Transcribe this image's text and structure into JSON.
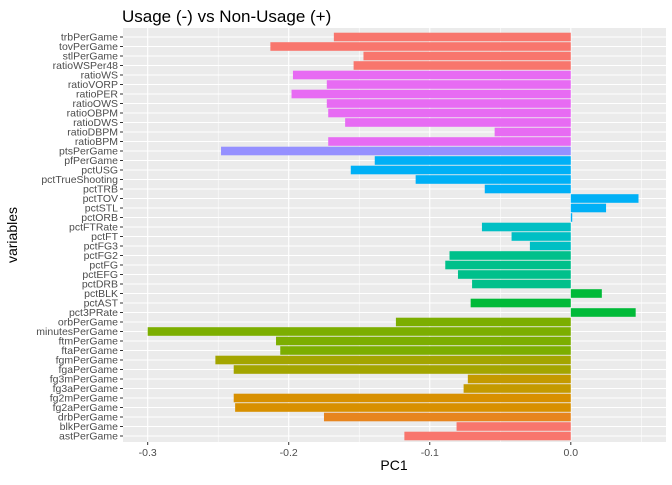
{
  "chart_data": {
    "type": "bar",
    "orientation": "horizontal",
    "title": "Usage (-) vs Non-Usage (+)",
    "xlabel": "PC1",
    "ylabel": "variables",
    "xlim": [
      -0.3175,
      0.0675
    ],
    "xticks": [
      -0.3,
      -0.2,
      -0.1,
      0.0
    ],
    "xtick_labels": [
      "-0.3",
      "-0.2",
      "-0.1",
      "0.0"
    ],
    "grid": true,
    "legend": "none",
    "bars": [
      {
        "name": "trbPerGame",
        "value": -0.168,
        "color": "#F8766D"
      },
      {
        "name": "tovPerGame",
        "value": -0.213,
        "color": "#F8766D"
      },
      {
        "name": "stlPerGame",
        "value": -0.147,
        "color": "#F8766D"
      },
      {
        "name": "ratioWSPer48",
        "value": -0.154,
        "color": "#F8766D"
      },
      {
        "name": "ratioWS",
        "value": -0.197,
        "color": "#E76BF3"
      },
      {
        "name": "ratioVORP",
        "value": -0.173,
        "color": "#E76BF3"
      },
      {
        "name": "ratioPER",
        "value": -0.198,
        "color": "#E76BF3"
      },
      {
        "name": "ratioOWS",
        "value": -0.173,
        "color": "#E76BF3"
      },
      {
        "name": "ratioOBPM",
        "value": -0.172,
        "color": "#E76BF3"
      },
      {
        "name": "ratioDWS",
        "value": -0.16,
        "color": "#E76BF3"
      },
      {
        "name": "ratioDBPM",
        "value": -0.054,
        "color": "#E76BF3"
      },
      {
        "name": "ratioBPM",
        "value": -0.172,
        "color": "#E76BF3"
      },
      {
        "name": "ptsPerGame",
        "value": -0.248,
        "color": "#9590FF"
      },
      {
        "name": "pfPerGame",
        "value": -0.139,
        "color": "#00B0F6"
      },
      {
        "name": "pctUSG",
        "value": -0.156,
        "color": "#00B0F6"
      },
      {
        "name": "pctTrueShooting",
        "value": -0.11,
        "color": "#00B0F6"
      },
      {
        "name": "pctTRB",
        "value": -0.061,
        "color": "#00B0F6"
      },
      {
        "name": "pctTOV",
        "value": 0.048,
        "color": "#00B0F6"
      },
      {
        "name": "pctSTL",
        "value": 0.025,
        "color": "#00B0F6"
      },
      {
        "name": "pctORB",
        "value": 0.001,
        "color": "#00B0F6"
      },
      {
        "name": "pctFTRate",
        "value": -0.063,
        "color": "#00BFC4"
      },
      {
        "name": "pctFT",
        "value": -0.042,
        "color": "#00BFC4"
      },
      {
        "name": "pctFG3",
        "value": -0.029,
        "color": "#00BFC4"
      },
      {
        "name": "pctFG2",
        "value": -0.086,
        "color": "#00C08B"
      },
      {
        "name": "pctFG",
        "value": -0.089,
        "color": "#00C08B"
      },
      {
        "name": "pctEFG",
        "value": -0.08,
        "color": "#00C08B"
      },
      {
        "name": "pctDRB",
        "value": -0.07,
        "color": "#00C08B"
      },
      {
        "name": "pctBLK",
        "value": 0.022,
        "color": "#00BA38"
      },
      {
        "name": "pctAST",
        "value": -0.071,
        "color": "#00BA38"
      },
      {
        "name": "pct3PRate",
        "value": 0.046,
        "color": "#00BA38"
      },
      {
        "name": "orbPerGame",
        "value": -0.124,
        "color": "#7CAE00"
      },
      {
        "name": "minutesPerGame",
        "value": -0.3,
        "color": "#7CAE00"
      },
      {
        "name": "ftmPerGame",
        "value": -0.209,
        "color": "#7CAE00"
      },
      {
        "name": "ftaPerGame",
        "value": -0.206,
        "color": "#7CAE00"
      },
      {
        "name": "fgmPerGame",
        "value": -0.252,
        "color": "#A3A500"
      },
      {
        "name": "fgaPerGame",
        "value": -0.239,
        "color": "#A3A500"
      },
      {
        "name": "fg3mPerGame",
        "value": -0.073,
        "color": "#C49A00"
      },
      {
        "name": "fg3aPerGame",
        "value": -0.076,
        "color": "#C49A00"
      },
      {
        "name": "fg2mPerGame",
        "value": -0.239,
        "color": "#D89000"
      },
      {
        "name": "fg2aPerGame",
        "value": -0.238,
        "color": "#D89000"
      },
      {
        "name": "drbPerGame",
        "value": -0.175,
        "color": "#E7851E"
      },
      {
        "name": "blkPerGame",
        "value": -0.081,
        "color": "#F8766D"
      },
      {
        "name": "astPerGame",
        "value": -0.118,
        "color": "#F8766D"
      }
    ],
    "colors": {
      "panel_bg": "#EBEBEB",
      "grid_major": "#FFFFFF",
      "text": "#000000",
      "tick_text": "#4D4D4D"
    }
  }
}
